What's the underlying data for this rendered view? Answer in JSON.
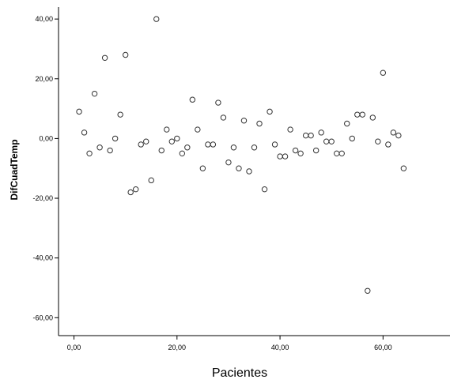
{
  "chart_data": {
    "type": "scatter",
    "title": "",
    "xlabel": "Pacientes",
    "ylabel": "DifCuadTemp",
    "xlim": [
      -3,
      73
    ],
    "ylim": [
      -66,
      44
    ],
    "x_ticks": [
      0,
      20,
      40,
      60
    ],
    "x_tick_labels": [
      "0,00",
      "20,00",
      "40,00",
      "60,00"
    ],
    "y_ticks": [
      40,
      20,
      0,
      -20,
      -40,
      -60
    ],
    "y_tick_labels": [
      "40,00",
      "20,00",
      "0,00",
      "-20,00",
      "-40,00",
      "-60,00"
    ],
    "grid": false,
    "legend": "none",
    "marker": "open-circle",
    "colors": {
      "marker": "#333333",
      "axis": "#000000",
      "background": "#ffffff"
    },
    "points": [
      {
        "x": 1,
        "y": 9
      },
      {
        "x": 2,
        "y": 2
      },
      {
        "x": 3,
        "y": -5
      },
      {
        "x": 4,
        "y": 15
      },
      {
        "x": 5,
        "y": -3
      },
      {
        "x": 6,
        "y": 27
      },
      {
        "x": 7,
        "y": -4
      },
      {
        "x": 8,
        "y": 0
      },
      {
        "x": 9,
        "y": 8
      },
      {
        "x": 10,
        "y": 28
      },
      {
        "x": 11,
        "y": -18
      },
      {
        "x": 12,
        "y": -17
      },
      {
        "x": 13,
        "y": -2
      },
      {
        "x": 14,
        "y": -1
      },
      {
        "x": 15,
        "y": -14
      },
      {
        "x": 16,
        "y": 40
      },
      {
        "x": 17,
        "y": -4
      },
      {
        "x": 18,
        "y": 3
      },
      {
        "x": 19,
        "y": -1
      },
      {
        "x": 20,
        "y": 0
      },
      {
        "x": 21,
        "y": -5
      },
      {
        "x": 22,
        "y": -3
      },
      {
        "x": 23,
        "y": 13
      },
      {
        "x": 24,
        "y": 3
      },
      {
        "x": 25,
        "y": -10
      },
      {
        "x": 26,
        "y": -2
      },
      {
        "x": 27,
        "y": -2
      },
      {
        "x": 28,
        "y": 12
      },
      {
        "x": 29,
        "y": 7
      },
      {
        "x": 30,
        "y": -8
      },
      {
        "x": 31,
        "y": -3
      },
      {
        "x": 32,
        "y": -10
      },
      {
        "x": 33,
        "y": 6
      },
      {
        "x": 34,
        "y": -11
      },
      {
        "x": 35,
        "y": -3
      },
      {
        "x": 36,
        "y": 5
      },
      {
        "x": 37,
        "y": -17
      },
      {
        "x": 38,
        "y": 9
      },
      {
        "x": 39,
        "y": -2
      },
      {
        "x": 40,
        "y": -6
      },
      {
        "x": 41,
        "y": -6
      },
      {
        "x": 42,
        "y": 3
      },
      {
        "x": 43,
        "y": -4
      },
      {
        "x": 44,
        "y": -5
      },
      {
        "x": 45,
        "y": 1
      },
      {
        "x": 46,
        "y": 1
      },
      {
        "x": 47,
        "y": -4
      },
      {
        "x": 48,
        "y": 2
      },
      {
        "x": 49,
        "y": -1
      },
      {
        "x": 50,
        "y": -1
      },
      {
        "x": 51,
        "y": -5
      },
      {
        "x": 52,
        "y": -5
      },
      {
        "x": 53,
        "y": 5
      },
      {
        "x": 54,
        "y": 0
      },
      {
        "x": 55,
        "y": 8
      },
      {
        "x": 56,
        "y": 8
      },
      {
        "x": 57,
        "y": -51
      },
      {
        "x": 58,
        "y": 7
      },
      {
        "x": 59,
        "y": -1
      },
      {
        "x": 60,
        "y": 22
      },
      {
        "x": 61,
        "y": -2
      },
      {
        "x": 62,
        "y": 2
      },
      {
        "x": 63,
        "y": 1
      },
      {
        "x": 64,
        "y": -10
      }
    ]
  }
}
